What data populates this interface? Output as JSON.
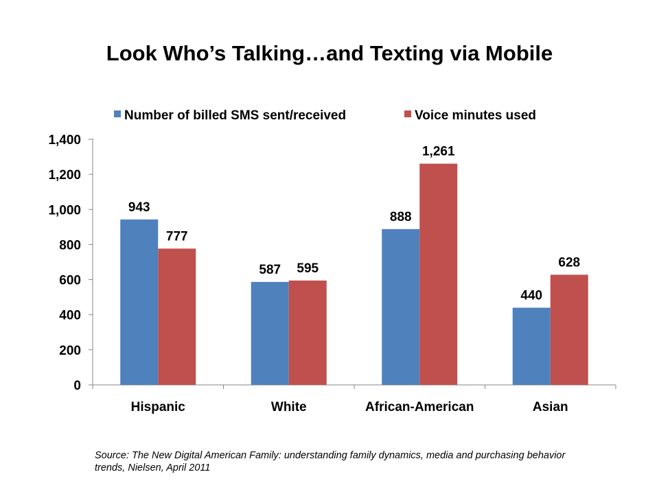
{
  "chart_data": {
    "type": "bar",
    "title": "Look Who’s Talking…and Texting via Mobile",
    "categories": [
      "Hispanic",
      "White",
      "African-American",
      "Asian"
    ],
    "series": [
      {
        "name": "Number of billed SMS sent/received",
        "color": "#4F81BD",
        "values": [
          943,
          587,
          888,
          440
        ],
        "labels": [
          "943",
          "587",
          "888",
          "440"
        ]
      },
      {
        "name": "Voice minutes used",
        "color": "#C0504D",
        "values": [
          777,
          595,
          1261,
          628
        ],
        "labels": [
          "777",
          "595",
          "1,261",
          "628"
        ]
      }
    ],
    "yticks": [
      0,
      200,
      400,
      600,
      800,
      1000,
      1200,
      1400
    ],
    "ytick_labels": [
      "0",
      "200",
      "400",
      "600",
      "800",
      "1,000",
      "1,200",
      "1,400"
    ],
    "ylim": [
      0,
      1400
    ],
    "xlabel": "",
    "ylabel": "",
    "grid": false,
    "legend_position": "top"
  },
  "source": "Source: The New Digital American Family: understanding family dynamics, media and purchasing behavior trends, Nielsen, April 2011"
}
